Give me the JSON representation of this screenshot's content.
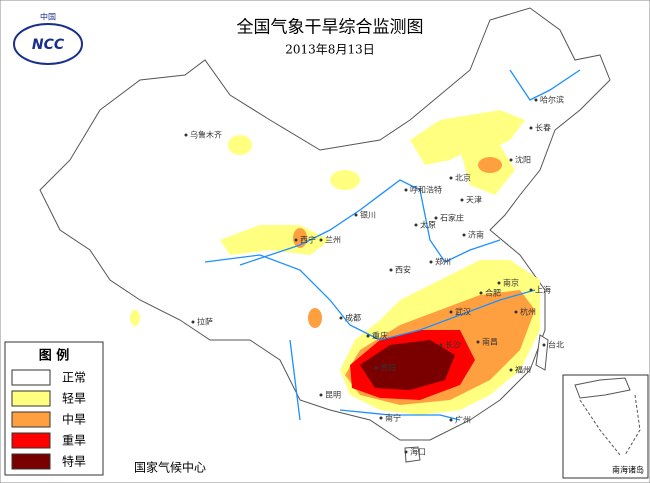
{
  "title": "全国气象干旱综合监测图",
  "date": "2013年8月13日",
  "logo": {
    "text": "中国",
    "abbr": "NCC"
  },
  "legend": {
    "title": "图  例",
    "items": [
      {
        "label": "正常",
        "color": "#ffffff"
      },
      {
        "label": "轻旱",
        "color": "#ffff80"
      },
      {
        "label": "中旱",
        "color": "#ffa040"
      },
      {
        "label": "重旱",
        "color": "#ff0000"
      },
      {
        "label": "特旱",
        "color": "#7a0000"
      }
    ]
  },
  "source": "国家气候中心",
  "inset_label": "南海诸岛",
  "cities": [
    "乌鲁木齐",
    "哈尔滨",
    "长春",
    "沈阳",
    "呼和浩特",
    "北京",
    "天津",
    "石家庄",
    "太原",
    "银川",
    "兰州",
    "西宁",
    "济南",
    "郑州",
    "西安",
    "合肥",
    "南京",
    "上海",
    "杭州",
    "武汉",
    "成都",
    "重庆",
    "长沙",
    "南昌",
    "福州",
    "贵阳",
    "昆明",
    "南宁",
    "广州",
    "海口",
    "拉萨",
    "台北"
  ]
}
